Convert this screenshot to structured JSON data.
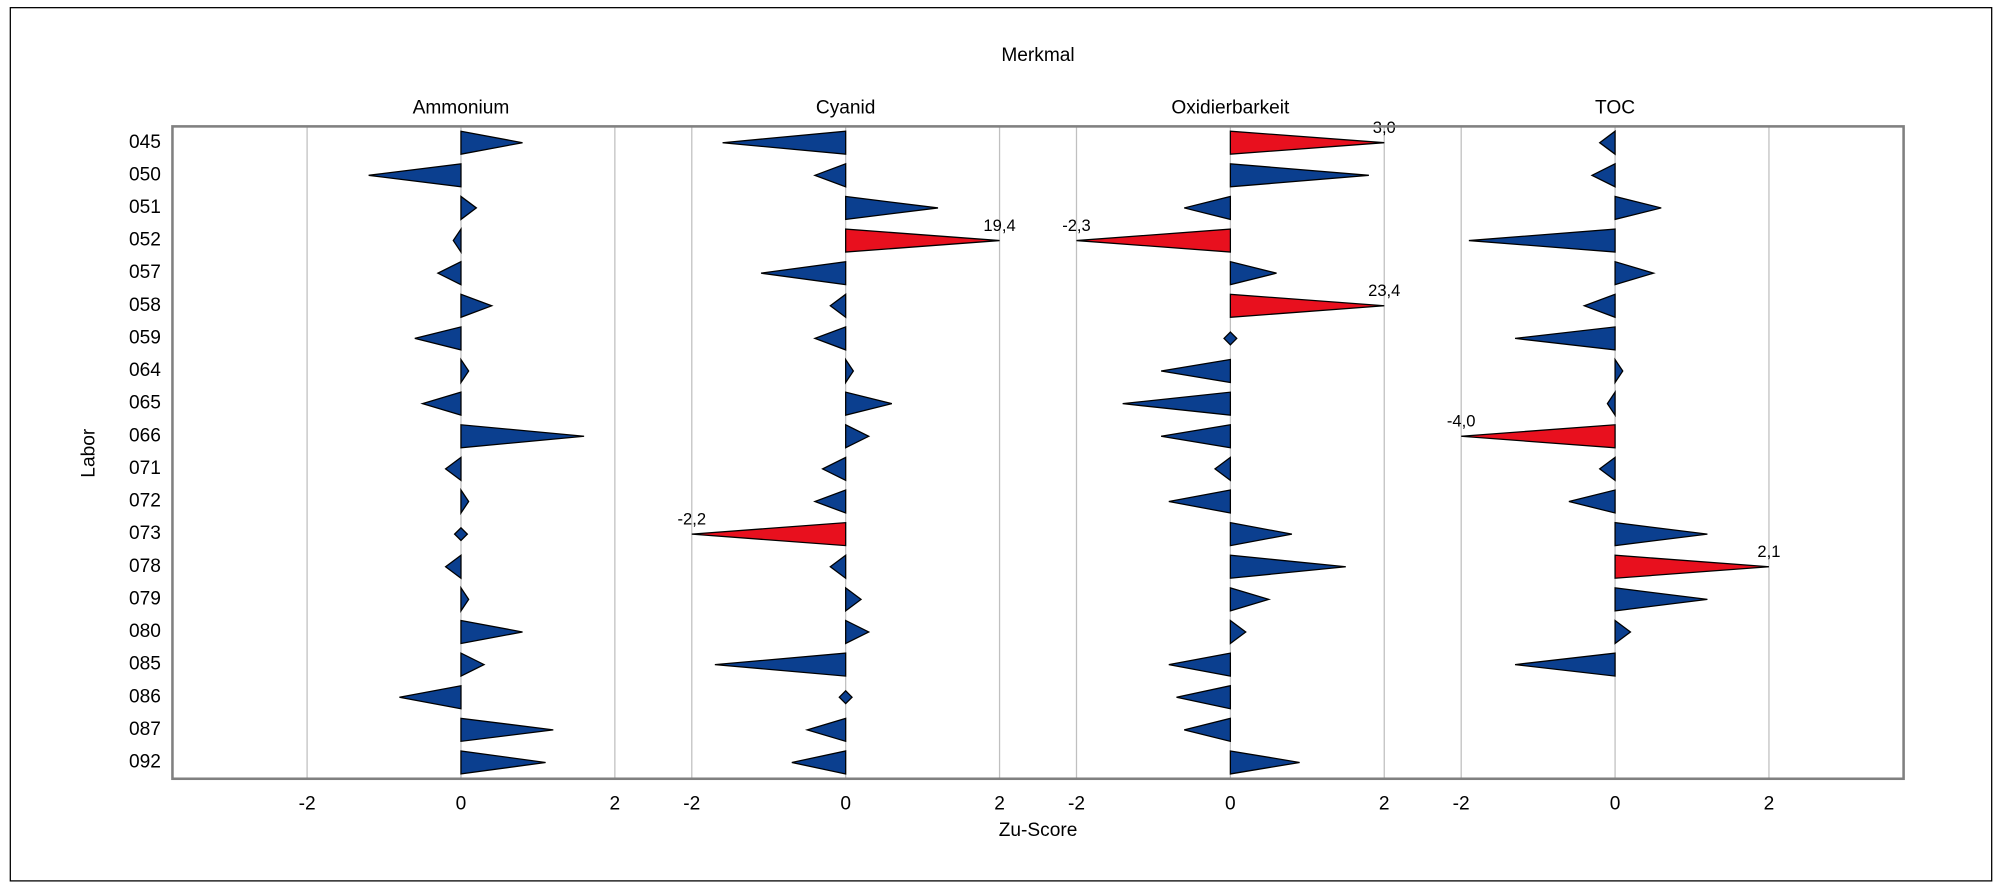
{
  "chart_data": {
    "type": "triangle",
    "title": "Merkmal",
    "xlabel": "Zu-Score",
    "ylabel": "Labor",
    "categories": [
      "045",
      "050",
      "051",
      "052",
      "057",
      "058",
      "059",
      "064",
      "065",
      "066",
      "071",
      "072",
      "073",
      "078",
      "079",
      "080",
      "085",
      "086",
      "087",
      "092"
    ],
    "xticks": [
      -2,
      0,
      2
    ],
    "grid": true,
    "cap": 2,
    "color": "#0b3f8f",
    "outlier_color": "#e8101e",
    "series": [
      {
        "name": "Ammonium",
        "xlim": [
          -3.75,
          2.5
        ],
        "values": [
          0.8,
          -1.2,
          0.2,
          -0.1,
          -0.3,
          0.4,
          -0.6,
          0.1,
          -0.5,
          1.6,
          -0.2,
          0.1,
          0,
          -0.2,
          0.1,
          0.8,
          0.3,
          -0.8,
          1.2,
          1.1
        ],
        "value_labels": [
          null,
          null,
          null,
          null,
          null,
          null,
          null,
          null,
          null,
          null,
          null,
          null,
          null,
          null,
          null,
          null,
          null,
          null,
          null,
          null
        ]
      },
      {
        "name": "Cyanid",
        "xlim": [
          -2.5,
          2.5
        ],
        "values": [
          -1.6,
          -0.4,
          1.2,
          19.4,
          -1.1,
          -0.2,
          -0.4,
          0.1,
          0.6,
          0.3,
          -0.3,
          -0.4,
          -2.2,
          -0.2,
          0.2,
          0.3,
          -1.7,
          0,
          -0.5,
          -0.7
        ],
        "value_labels": [
          null,
          null,
          null,
          "19,4",
          null,
          null,
          null,
          null,
          null,
          null,
          null,
          null,
          "-2,2",
          null,
          null,
          null,
          null,
          null,
          null,
          null
        ]
      },
      {
        "name": "Oxidierbarkeit",
        "xlim": [
          -2.5,
          2.5
        ],
        "values": [
          3.0,
          1.8,
          -0.6,
          -2.3,
          0.6,
          23.4,
          0,
          -0.9,
          -1.4,
          -0.9,
          -0.2,
          -0.8,
          0.8,
          1.5,
          0.5,
          0.2,
          -0.8,
          -0.7,
          -0.6,
          0.9
        ],
        "value_labels": [
          "3,0",
          null,
          null,
          "-2,3",
          null,
          "23,4",
          null,
          null,
          null,
          null,
          null,
          null,
          null,
          null,
          null,
          null,
          null,
          null,
          null,
          null
        ]
      },
      {
        "name": "TOC",
        "xlim": [
          -2.5,
          3.75
        ],
        "values": [
          -0.2,
          -0.3,
          0.6,
          -1.9,
          0.5,
          -0.4,
          -1.3,
          0.1,
          -0.1,
          -4.0,
          -0.2,
          -0.6,
          1.2,
          2.1,
          1.2,
          0.2,
          -1.3,
          null,
          null,
          null
        ],
        "value_labels": [
          null,
          null,
          null,
          null,
          null,
          null,
          null,
          null,
          null,
          "-4,0",
          null,
          null,
          null,
          "2,1",
          null,
          null,
          null,
          null,
          null,
          null
        ]
      }
    ]
  }
}
